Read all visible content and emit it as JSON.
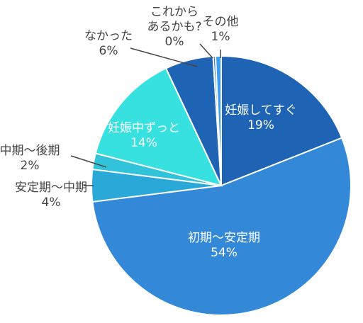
{
  "chart_data": {
    "type": "pie",
    "title": "",
    "slices": [
      {
        "label": "妊娠してすぐ",
        "value": 19,
        "pct_text": "19%",
        "color": "#1f63b4"
      },
      {
        "label": "初期～安定期",
        "value": 54,
        "pct_text": "54%",
        "color": "#3388d8"
      },
      {
        "label": "安定期～中期",
        "value": 4,
        "pct_text": "4%",
        "color": "#2aa9d8"
      },
      {
        "label": "中期～後期",
        "value": 2,
        "pct_text": "2%",
        "color": "#30c3d9"
      },
      {
        "label": "妊娠中ずっと",
        "value": 14,
        "pct_text": "14%",
        "color": "#37e1e0"
      },
      {
        "label": "なかった",
        "value": 6,
        "pct_text": "6%",
        "color": "#1f63b4"
      },
      {
        "label": "これからあるかも?",
        "value": 0.3,
        "pct_text": "0%",
        "color": "#2f7fd2"
      },
      {
        "label": "その他",
        "value": 0.7,
        "pct_text": "1%",
        "color": "#3c9cf0"
      }
    ],
    "label_lines": {
      "これからあるかも?": [
        "これから",
        "あるかも?"
      ]
    }
  }
}
